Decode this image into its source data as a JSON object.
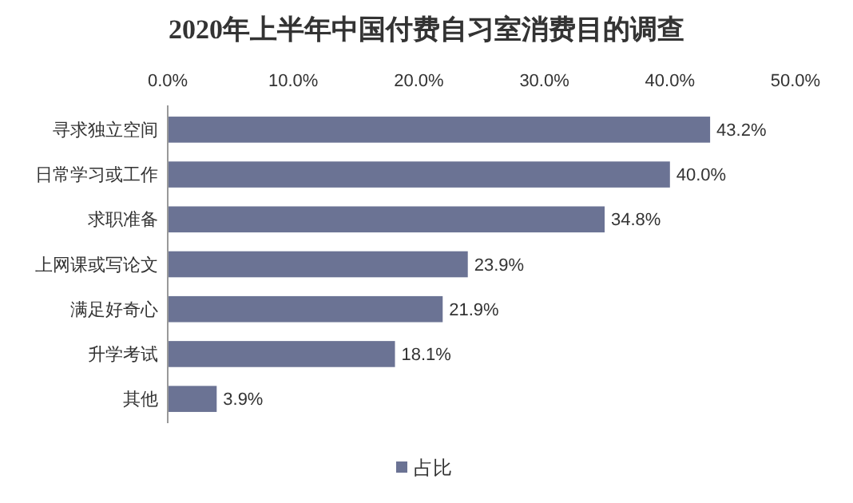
{
  "chart_data": {
    "type": "bar",
    "orientation": "horizontal",
    "title": "2020年上半年中国付费自习室消费目的调查",
    "categories": [
      "寻求独立空间",
      "日常学习或工作",
      "求职准备",
      "上网课或写论文",
      "满足好奇心",
      "升学考试",
      "其他"
    ],
    "series": [
      {
        "name": "占比",
        "color": "#6b7394",
        "values": [
          43.2,
          40.0,
          34.8,
          23.9,
          21.9,
          18.1,
          3.9
        ],
        "value_labels": [
          "43.2%",
          "40.0%",
          "34.8%",
          "23.9%",
          "21.9%",
          "18.1%",
          "3.9%"
        ]
      }
    ],
    "xlim": [
      0,
      50
    ],
    "xticks": [
      {
        "value": 0,
        "label": "0.0%"
      },
      {
        "value": 10,
        "label": "10.0%"
      },
      {
        "value": 20,
        "label": "20.0%"
      },
      {
        "value": 30,
        "label": "30.0%"
      },
      {
        "value": 40,
        "label": "40.0%"
      },
      {
        "value": 50,
        "label": "50.0%"
      }
    ],
    "grid": false,
    "legend": "bottom"
  }
}
